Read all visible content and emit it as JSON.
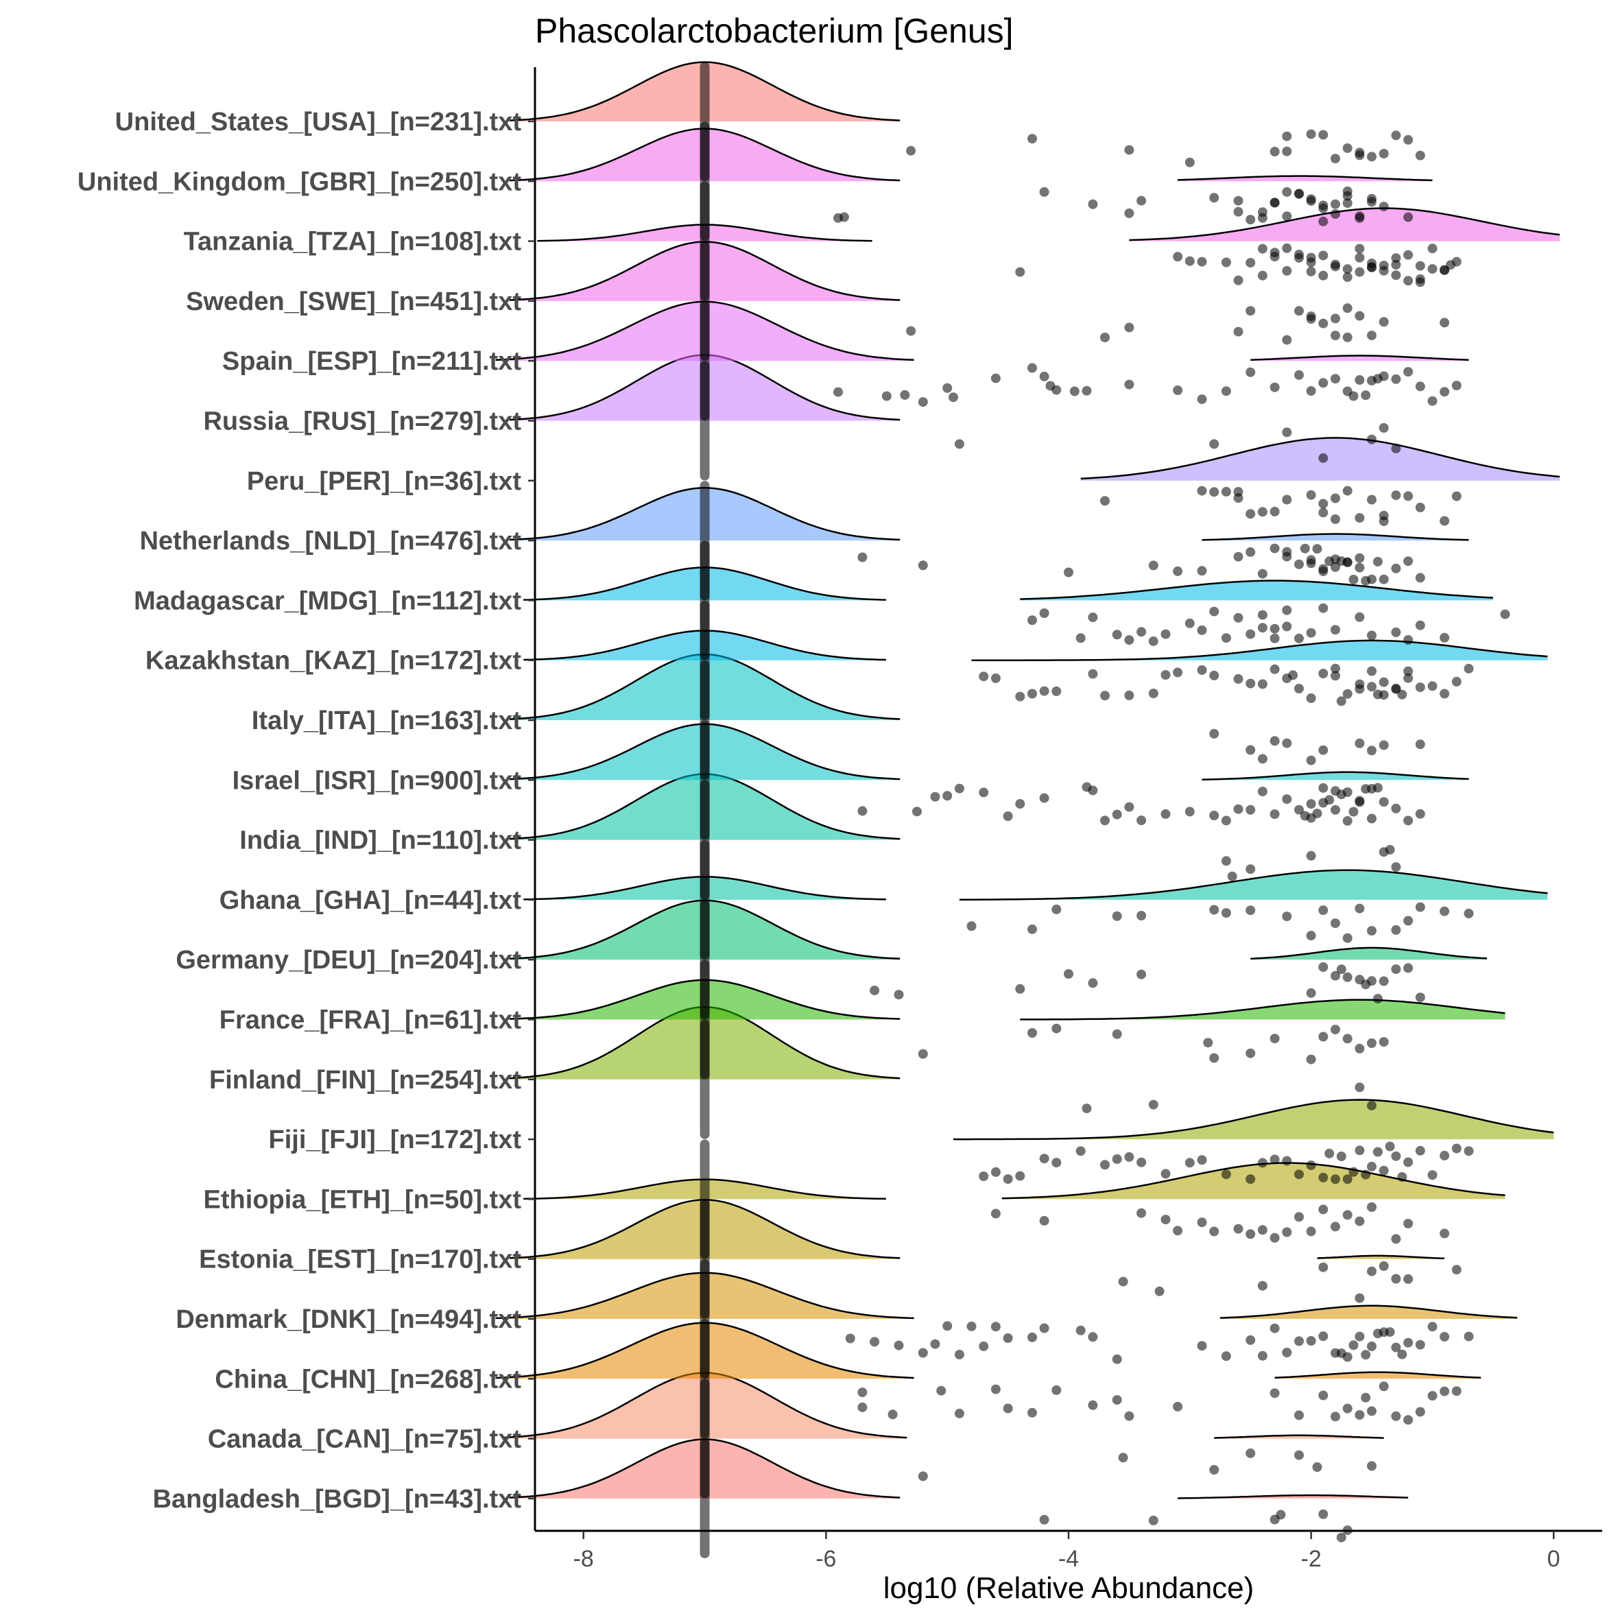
{
  "chart_data": {
    "type": "ridgeline",
    "title": "Phascolarctobacterium [Genus]",
    "xlabel": "log10 (Relative Abundance)",
    "ylabel": "",
    "xlim": [
      -8.4,
      0.4
    ],
    "xticks": [
      -8,
      -6,
      -4,
      -2,
      0
    ],
    "xtick_labels": [
      "-8",
      "-6",
      "-4",
      "-2",
      "0"
    ],
    "zero_value": -7,
    "series": [
      {
        "name": "United_States_[USA]_[n=231].txt",
        "color": "#F8766D",
        "zero": {
          "width": 1.4,
          "height": 0.9
        },
        "detected": null,
        "points": [
          -5.3,
          -4.3,
          -3.5,
          -3.0,
          -2.3,
          -2.2,
          -2.0,
          -1.8,
          -1.6,
          -1.5,
          -1.4,
          -1.2,
          -1.1,
          -1.9,
          -1.7,
          -2.2,
          -1.3,
          -1.6
        ]
      },
      {
        "name": "United_Kingdom_[GBR]_[n=250].txt",
        "color": "#F066EA",
        "zero": {
          "width": 1.4,
          "height": 0.8
        },
        "detected": {
          "min": -3.1,
          "max": -1.0,
          "mean": -2.1,
          "sd": 0.6,
          "height": 0.08
        },
        "points": [
          -5.9,
          -5.85,
          -4.2,
          -3.8,
          -3.5,
          -3.4,
          -2.8,
          -2.6,
          -2.5,
          -2.4,
          -2.3,
          -2.3,
          -2.2,
          -2.1,
          -2.1,
          -2.0,
          -2.0,
          -1.9,
          -1.9,
          -1.8,
          -1.8,
          -1.7,
          -1.7,
          -1.6,
          -1.6,
          -1.5,
          -1.4,
          -1.2,
          -2.4,
          -2.2,
          -1.9,
          -1.7,
          -2.6,
          -1.5
        ]
      },
      {
        "name": "Tanzania_[TZA]_[n=108].txt",
        "color": "#F066EA",
        "zero": {
          "width": 1.2,
          "height": 0.25
        },
        "detected": {
          "min": -3.5,
          "max": 0.05,
          "mean": -1.4,
          "sd": 0.8,
          "height": 0.5
        },
        "points": [
          -4.4,
          -3.1,
          -3.0,
          -2.9,
          -2.7,
          -2.6,
          -2.5,
          -2.4,
          -2.3,
          -2.3,
          -2.2,
          -2.2,
          -2.1,
          -2.0,
          -2.0,
          -1.9,
          -1.9,
          -1.8,
          -1.8,
          -1.7,
          -1.7,
          -1.6,
          -1.6,
          -1.5,
          -1.5,
          -1.4,
          -1.4,
          -1.3,
          -1.3,
          -1.2,
          -1.2,
          -1.1,
          -1.1,
          -1.0,
          -1.0,
          -0.9,
          -0.9,
          -0.8,
          -2.4,
          -2.0,
          -1.6,
          -1.3,
          -1.1,
          -0.85,
          -2.1,
          -1.5
        ]
      },
      {
        "name": "Sweden_[SWE]_[n=451].txt",
        "color": "#F066EA",
        "zero": {
          "width": 1.4,
          "height": 0.9
        },
        "detected": null,
        "points": [
          -5.3,
          -3.7,
          -3.5,
          -2.6,
          -2.5,
          -2.2,
          -2.1,
          -2.0,
          -1.9,
          -1.8,
          -1.8,
          -1.7,
          -1.6,
          -1.5,
          -1.4,
          -0.9,
          -1.7,
          -2.0
        ]
      },
      {
        "name": "Spain_[ESP]_[n=211].txt",
        "color": "#E56BF8",
        "zero": {
          "width": 1.5,
          "height": 0.9
        },
        "detected": {
          "min": -2.5,
          "max": -0.7,
          "mean": -1.6,
          "sd": 0.5,
          "height": 0.08
        },
        "points": [
          -5.9,
          -5.5,
          -5.35,
          -5.2,
          -5.0,
          -4.95,
          -4.6,
          -4.3,
          -4.2,
          -4.15,
          -4.1,
          -3.95,
          -3.85,
          -3.5,
          -3.1,
          -2.9,
          -2.7,
          -2.5,
          -2.3,
          -2.1,
          -2.0,
          -1.9,
          -1.8,
          -1.7,
          -1.6,
          -1.5,
          -1.4,
          -1.3,
          -1.2,
          -1.1,
          -1.0,
          -0.9,
          -0.8,
          -1.65,
          -1.55,
          -1.45
        ]
      },
      {
        "name": "Russia_[RUS]_[n=279].txt",
        "color": "#C77CFF",
        "zero": {
          "width": 1.4,
          "height": 1.0
        },
        "detected": null,
        "points": [
          -4.9,
          -2.8,
          -2.2,
          -1.9,
          -1.5,
          -1.4,
          -1.3
        ]
      },
      {
        "name": "Peru_[PER]_[n=36].txt",
        "color": "#A58AFF",
        "zero": null,
        "detected": {
          "min": -3.9,
          "max": 0.05,
          "mean": -1.8,
          "sd": 0.85,
          "height": 0.65
        },
        "points": [
          -3.7,
          -2.9,
          -2.8,
          -2.7,
          -2.6,
          -2.5,
          -2.4,
          -2.3,
          -2.2,
          -2.0,
          -1.9,
          -1.8,
          -1.8,
          -1.7,
          -1.6,
          -1.5,
          -1.4,
          -1.3,
          -1.2,
          -1.1,
          -0.9,
          -0.8,
          -1.9,
          -2.6,
          -1.4
        ]
      },
      {
        "name": "Netherlands_[NLD]_[n=476].txt",
        "color": "#619CFF",
        "zero": {
          "width": 1.4,
          "height": 0.8
        },
        "detected": {
          "min": -2.9,
          "max": -0.7,
          "mean": -1.8,
          "sd": 0.5,
          "height": 0.1
        },
        "points": [
          -5.7,
          -5.2,
          -4.0,
          -3.3,
          -3.1,
          -2.9,
          -2.6,
          -2.5,
          -2.4,
          -2.3,
          -2.2,
          -2.1,
          -2.0,
          -2.0,
          -1.9,
          -1.9,
          -1.8,
          -1.8,
          -1.7,
          -1.7,
          -1.6,
          -1.6,
          -1.5,
          -1.4,
          -1.3,
          -1.2,
          -1.1,
          -2.2,
          -1.95,
          -1.85,
          -1.75,
          -1.65,
          -1.55,
          -2.05,
          -1.45
        ]
      },
      {
        "name": "Madagascar_[MDG]_[n=112].txt",
        "color": "#00B8E7",
        "zero": {
          "width": 1.3,
          "height": 0.5
        },
        "detected": {
          "min": -4.4,
          "max": -0.5,
          "mean": -2.3,
          "sd": 0.9,
          "height": 0.3
        },
        "points": [
          -4.3,
          -4.2,
          -3.9,
          -3.8,
          -3.5,
          -3.4,
          -3.3,
          -3.2,
          -3.0,
          -2.9,
          -2.7,
          -2.6,
          -2.5,
          -2.4,
          -2.3,
          -2.2,
          -2.2,
          -2.1,
          -2.0,
          -1.9,
          -1.8,
          -1.6,
          -1.5,
          -1.3,
          -1.2,
          -1.1,
          -0.9,
          -0.4,
          -2.8,
          -2.4,
          -2.3,
          -3.6
        ]
      },
      {
        "name": "Kazakhstan_[KAZ]_[n=172].txt",
        "color": "#00B8E7",
        "zero": {
          "width": 1.3,
          "height": 0.45
        },
        "detected": {
          "min": -4.8,
          "max": -0.05,
          "mean": -1.5,
          "sd": 0.8,
          "height": 0.3
        },
        "points": [
          -4.7,
          -4.6,
          -4.4,
          -4.3,
          -4.2,
          -4.1,
          -3.8,
          -3.7,
          -3.5,
          -3.3,
          -3.2,
          -3.1,
          -2.9,
          -2.8,
          -2.6,
          -2.5,
          -2.4,
          -2.3,
          -2.2,
          -2.1,
          -2.0,
          -1.9,
          -1.8,
          -1.8,
          -1.7,
          -1.6,
          -1.6,
          -1.5,
          -1.5,
          -1.4,
          -1.4,
          -1.3,
          -1.3,
          -1.2,
          -1.2,
          -1.1,
          -1.0,
          -0.9,
          -0.8,
          -0.7,
          -1.75,
          -1.45,
          -1.25,
          -2.15
        ]
      },
      {
        "name": "Italy_[ITA]_[n=163].txt",
        "color": "#00BFC4",
        "zero": {
          "width": 1.4,
          "height": 1.0
        },
        "detected": null,
        "points": [
          -2.8,
          -2.5,
          -2.4,
          -2.3,
          -2.2,
          -2.0,
          -1.9,
          -1.6,
          -1.5,
          -1.4,
          -1.1
        ]
      },
      {
        "name": "Israel_[ISR]_[n=900].txt",
        "color": "#00BFC4",
        "zero": {
          "width": 1.4,
          "height": 0.85
        },
        "detected": {
          "min": -2.9,
          "max": -0.7,
          "mean": -1.7,
          "sd": 0.5,
          "height": 0.12
        },
        "points": [
          -5.7,
          -5.25,
          -5.1,
          -5.0,
          -4.9,
          -4.7,
          -4.5,
          -4.4,
          -4.2,
          -3.85,
          -3.8,
          -3.7,
          -3.6,
          -3.5,
          -3.4,
          -3.2,
          -3.0,
          -2.8,
          -2.7,
          -2.6,
          -2.5,
          -2.4,
          -2.3,
          -2.2,
          -2.1,
          -2.0,
          -2.0,
          -1.9,
          -1.9,
          -1.8,
          -1.8,
          -1.7,
          -1.7,
          -1.6,
          -1.6,
          -1.5,
          -1.5,
          -1.4,
          -1.3,
          -1.2,
          -1.1,
          -1.95,
          -1.85,
          -1.75,
          -1.65,
          -1.55,
          -1.45,
          -2.05
        ]
      },
      {
        "name": "India_[IND]_[n=110].txt",
        "color": "#00C1A3",
        "zero": {
          "width": 1.4,
          "height": 1.0
        },
        "detected": null,
        "points": [
          -2.7,
          -2.65,
          -2.5,
          -2.0,
          -1.4,
          -1.35,
          -1.3
        ]
      },
      {
        "name": "Ghana_[GHA]_[n=44].txt",
        "color": "#00C1A3",
        "zero": {
          "width": 1.3,
          "height": 0.35
        },
        "detected": {
          "min": -4.9,
          "max": -0.05,
          "mean": -1.7,
          "sd": 0.95,
          "height": 0.45
        },
        "points": [
          -4.8,
          -4.3,
          -4.1,
          -3.6,
          -3.4,
          -2.8,
          -2.7,
          -2.5,
          -2.2,
          -2.0,
          -1.9,
          -1.8,
          -1.7,
          -1.6,
          -1.5,
          -1.3,
          -1.2,
          -1.1,
          -0.9,
          -0.7
        ]
      },
      {
        "name": "Germany_[DEU]_[n=204].txt",
        "color": "#00BE70",
        "zero": {
          "width": 1.4,
          "height": 0.9
        },
        "detected": {
          "min": -2.5,
          "max": -0.55,
          "mean": -1.5,
          "sd": 0.45,
          "height": 0.18
        },
        "points": [
          -5.6,
          -5.4,
          -4.4,
          -4.0,
          -3.8,
          -3.4,
          -2.0,
          -1.9,
          -1.8,
          -1.7,
          -1.6,
          -1.5,
          -1.4,
          -1.3,
          -1.2,
          -1.1,
          -1.75,
          -1.55,
          -1.45
        ]
      },
      {
        "name": "France_[FRA]_[n=61].txt",
        "color": "#24B700",
        "zero": {
          "width": 1.4,
          "height": 0.6
        },
        "detected": {
          "min": -4.4,
          "max": -0.4,
          "mean": -1.6,
          "sd": 0.8,
          "height": 0.3
        },
        "points": [
          -5.2,
          -4.3,
          -4.1,
          -3.6,
          -2.8,
          -2.5,
          -2.3,
          -2.0,
          -1.9,
          -1.8,
          -1.7,
          -1.6,
          -1.5,
          -1.4,
          -2.85
        ]
      },
      {
        "name": "Finland_[FIN]_[n=254].txt",
        "color": "#7CAE00",
        "zero": {
          "width": 1.4,
          "height": 1.1
        },
        "detected": null,
        "points": [
          -3.85,
          -3.3,
          -1.6,
          -1.5
        ]
      },
      {
        "name": "Fiji_[FJI]_[n=172].txt",
        "color": "#8CAB00",
        "zero": null,
        "detected": {
          "min": -4.95,
          "max": 0.0,
          "mean": -1.6,
          "sd": 0.85,
          "height": 0.6
        },
        "points": [
          -4.7,
          -4.6,
          -4.4,
          -4.2,
          -4.1,
          -3.9,
          -3.7,
          -3.5,
          -3.4,
          -3.2,
          -3.0,
          -2.9,
          -2.7,
          -2.5,
          -2.4,
          -2.3,
          -2.2,
          -2.1,
          -2.0,
          -1.9,
          -1.8,
          -1.7,
          -1.6,
          -1.5,
          -1.4,
          -1.3,
          -1.2,
          -1.1,
          -1.0,
          -0.9,
          -0.8,
          -0.7,
          -1.55,
          -1.45,
          -1.35,
          -1.65,
          -1.75,
          -1.25,
          -1.85,
          -4.5,
          -3.6
        ]
      },
      {
        "name": "Ethiopia_[ETH]_[n=50].txt",
        "color": "#AEA200",
        "zero": {
          "width": 1.3,
          "height": 0.3
        },
        "detected": {
          "min": -4.55,
          "max": -0.4,
          "mean": -2.2,
          "sd": 0.85,
          "height": 0.55
        },
        "points": [
          -4.6,
          -4.2,
          -3.4,
          -3.2,
          -3.1,
          -2.9,
          -2.8,
          -2.6,
          -2.4,
          -2.3,
          -2.2,
          -2.1,
          -2.0,
          -1.9,
          -1.8,
          -1.7,
          -1.6,
          -1.5,
          -1.3,
          -1.2,
          -0.9,
          -2.5
        ]
      },
      {
        "name": "Estonia_[EST]_[n=170].txt",
        "color": "#BB9D00",
        "zero": {
          "width": 1.4,
          "height": 0.9
        },
        "detected": {
          "min": -1.95,
          "max": -0.9,
          "mean": -1.45,
          "sd": 0.3,
          "height": 0.05
        },
        "points": [
          -3.55,
          -3.25,
          -2.4,
          -1.9,
          -1.6,
          -1.5,
          -1.4,
          -1.3,
          -1.2,
          -0.8
        ]
      },
      {
        "name": "Denmark_[DNK]_[n=494].txt",
        "color": "#D39200",
        "zero": {
          "width": 1.5,
          "height": 0.7
        },
        "detected": {
          "min": -2.75,
          "max": -0.3,
          "mean": -1.5,
          "sd": 0.55,
          "height": 0.2
        },
        "points": [
          -5.8,
          -5.6,
          -5.4,
          -5.2,
          -5.1,
          -5.0,
          -4.9,
          -4.8,
          -4.7,
          -4.6,
          -4.5,
          -4.3,
          -4.2,
          -3.9,
          -3.8,
          -3.6,
          -2.9,
          -2.7,
          -2.5,
          -2.4,
          -2.3,
          -2.2,
          -2.1,
          -2.0,
          -1.9,
          -1.8,
          -1.7,
          -1.6,
          -1.5,
          -1.4,
          -1.3,
          -1.2,
          -1.1,
          -1.0,
          -0.9,
          -0.7,
          -1.55,
          -1.45,
          -1.35,
          -1.65,
          -1.75,
          -1.25
        ]
      },
      {
        "name": "China_[CHN]_[n=268].txt",
        "color": "#E38900",
        "zero": {
          "width": 1.5,
          "height": 0.85
        },
        "detected": {
          "min": -2.3,
          "max": -0.6,
          "mean": -1.45,
          "sd": 0.45,
          "height": 0.1
        },
        "points": [
          -5.7,
          -5.45,
          -5.05,
          -4.9,
          -4.6,
          -4.5,
          -4.3,
          -4.1,
          -3.8,
          -3.6,
          -3.5,
          -3.1,
          -2.3,
          -2.1,
          -1.9,
          -1.8,
          -1.7,
          -1.6,
          -1.5,
          -1.4,
          -1.3,
          -1.2,
          -1.1,
          -1.0,
          -0.9,
          -0.8,
          -5.7,
          -1.55
        ]
      },
      {
        "name": "Canada_[CAN]_[n=75].txt",
        "color": "#F58E68",
        "zero": {
          "width": 1.45,
          "height": 1.0
        },
        "detected": {
          "min": -2.8,
          "max": -1.4,
          "mean": -2.1,
          "sd": 0.4,
          "height": 0.05
        },
        "points": [
          -5.2,
          -3.55,
          -2.8,
          -2.5,
          -2.1,
          -1.95,
          -1.5
        ]
      },
      {
        "name": "Bangladesh_[BGD]_[n=43].txt",
        "color": "#F8766D",
        "zero": {
          "width": 1.4,
          "height": 0.9
        },
        "detected": {
          "min": -3.1,
          "max": -1.2,
          "mean": -2.0,
          "sd": 0.5,
          "height": 0.05
        },
        "points": [
          -4.2,
          -3.3,
          -2.3,
          -2.25,
          -1.9,
          -1.75,
          -1.7
        ]
      }
    ]
  }
}
